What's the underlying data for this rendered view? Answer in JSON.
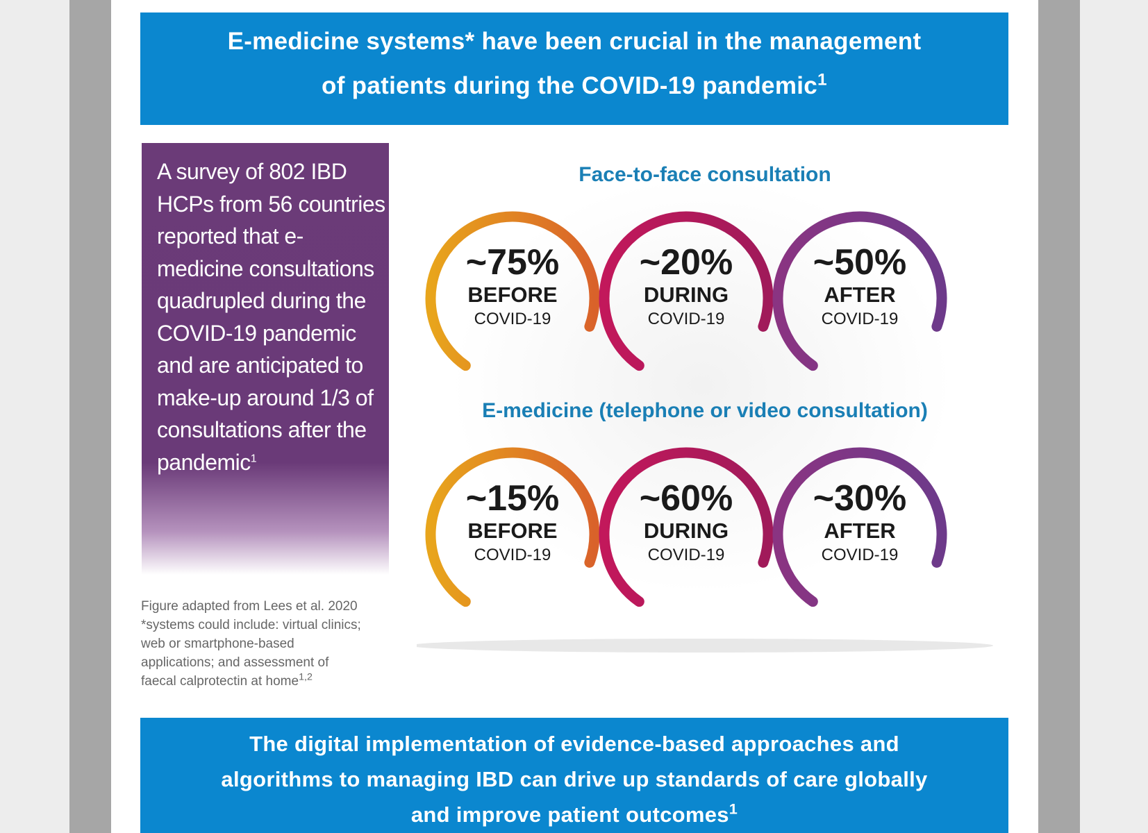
{
  "header_banner": {
    "line1": "E-medicine systems* have been crucial in the management",
    "line2": "of patients during the COVID-19 pandemic",
    "ref": "1"
  },
  "survey_box": {
    "text": "A survey of 802 IBD HCPs from 56 countries reported that e-medicine consultations quadrupled during the COVID-19 pandemic and are anticipated to make-up around 1/3 of consultations after the pandemic",
    "ref": "1"
  },
  "footnote": {
    "line1": "Figure adapted from Lees et al. 2020",
    "line2": "*systems could include: virtual clinics;",
    "line3": "web or smartphone-based",
    "line4": "applications; and assessment of",
    "line5": "faecal calprotectin at home",
    "ref": "1,2"
  },
  "infographic": {
    "face_to_face": {
      "title": "Face-to-face consultation",
      "items": [
        {
          "pct": "~75%",
          "phase": "BEFORE",
          "covid": "COVID-19",
          "color": "#e6a020"
        },
        {
          "pct": "~20%",
          "phase": "DURING",
          "covid": "COVID-19",
          "color": "#c2185b"
        },
        {
          "pct": "~50%",
          "phase": "AFTER",
          "covid": "COVID-19",
          "color": "#7b3a8c"
        }
      ]
    },
    "emedicine": {
      "title": "E-medicine (telephone or video consultation)",
      "items": [
        {
          "pct": "~15%",
          "phase": "BEFORE",
          "covid": "COVID-19",
          "color": "#e6a020"
        },
        {
          "pct": "~60%",
          "phase": "DURING",
          "covid": "COVID-19",
          "color": "#c2185b"
        },
        {
          "pct": "~30%",
          "phase": "AFTER",
          "covid": "COVID-19",
          "color": "#7b3a8c"
        }
      ]
    }
  },
  "footer_banner": {
    "line1": "The digital implementation of evidence-based approaches and",
    "line2": "algorithms to managing IBD can drive up standards of care globally",
    "line3": "and improve patient outcomes",
    "ref": "1"
  }
}
